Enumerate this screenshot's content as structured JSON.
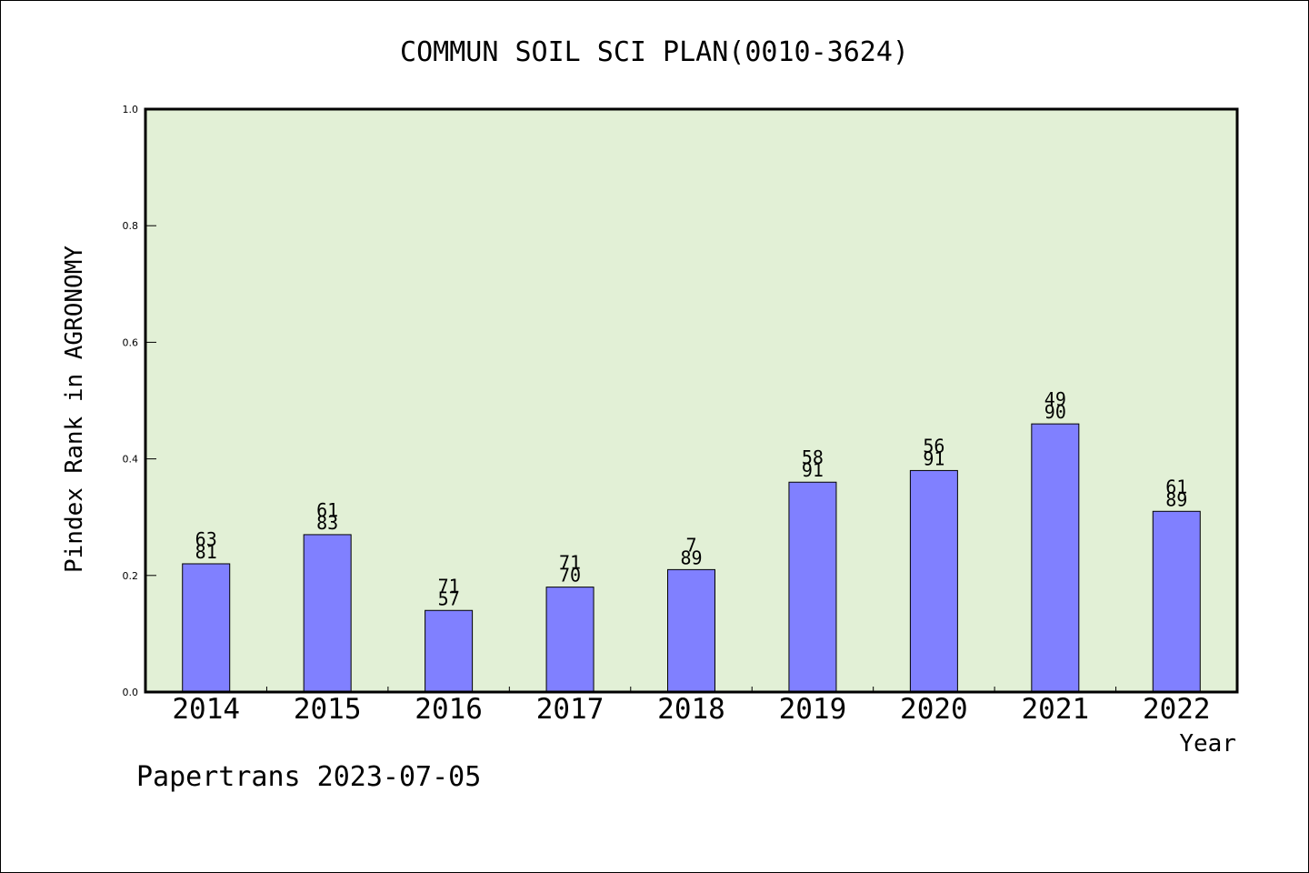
{
  "chart_data": {
    "type": "bar",
    "title": "COMMUN SOIL SCI PLAN(0010-3624)",
    "xlabel": "Year",
    "ylabel": "Pindex Rank in AGRONOMY",
    "ylim": [
      0,
      1.0
    ],
    "yticks": [
      "0.0",
      "0.2",
      "0.4",
      "0.6",
      "0.8",
      "1.0"
    ],
    "categories": [
      "2014",
      "2015",
      "2016",
      "2017",
      "2018",
      "2019",
      "2020",
      "2021",
      "2022"
    ],
    "values": [
      0.22,
      0.27,
      0.14,
      0.18,
      0.21,
      0.36,
      0.38,
      0.46,
      0.31
    ],
    "labels_top": [
      "63",
      "61",
      "71",
      "71",
      "7",
      "58",
      "56",
      "49",
      "61"
    ],
    "labels_bottom": [
      "81",
      "83",
      "57",
      "70",
      "89",
      "91",
      "91",
      "90",
      "89"
    ],
    "colors": {
      "plot_background": "#e2f0d6",
      "bar_fill": "#8080ff",
      "bar_stroke": "#000000"
    },
    "grid": false,
    "legend": "none"
  },
  "footer": {
    "credit": "Papertrans 2023-07-05"
  }
}
